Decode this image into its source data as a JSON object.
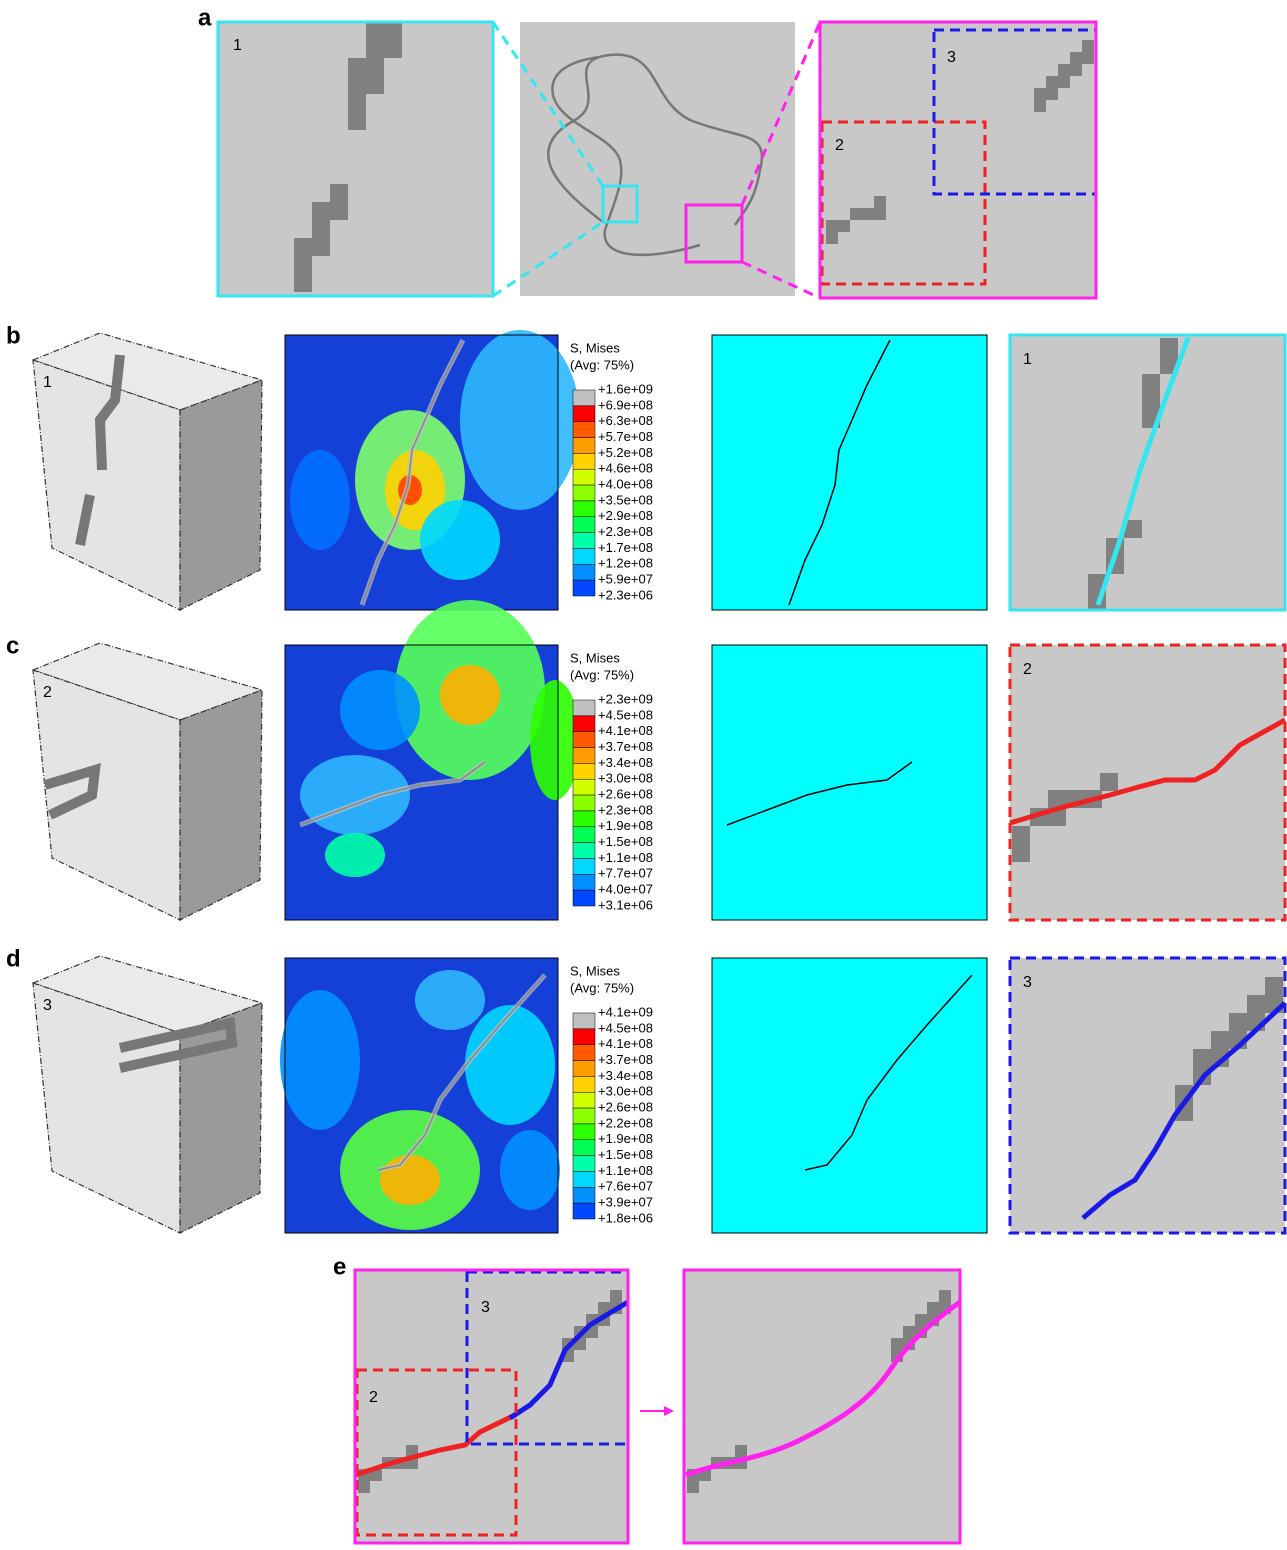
{
  "panel_a": {
    "label": "a",
    "zoom_left_label": "1",
    "zoom_right_labels": [
      "3",
      "2"
    ]
  },
  "rows": [
    {
      "label": "b",
      "block_label": "1",
      "zoom_label": "1",
      "legend": {
        "title": "S, Mises",
        "subtitle": "(Avg: 75%)",
        "ticks": [
          "+1.6e+09",
          "+6.9e+08",
          "+6.3e+08",
          "+5.7e+08",
          "+5.2e+08",
          "+4.6e+08",
          "+4.0e+08",
          "+3.5e+08",
          "+2.9e+08",
          "+2.3e+08",
          "+1.7e+08",
          "+1.2e+08",
          "+5.9e+07",
          "+2.3e+06"
        ]
      }
    },
    {
      "label": "c",
      "block_label": "2",
      "zoom_label": "2",
      "legend": {
        "title": "S, Mises",
        "subtitle": "(Avg: 75%)",
        "ticks": [
          "+2.3e+09",
          "+4.5e+08",
          "+4.1e+08",
          "+3.7e+08",
          "+3.4e+08",
          "+3.0e+08",
          "+2.6e+08",
          "+2.3e+08",
          "+1.9e+08",
          "+1.5e+08",
          "+1.1e+08",
          "+7.7e+07",
          "+4.0e+07",
          "+3.1e+06"
        ]
      }
    },
    {
      "label": "d",
      "block_label": "3",
      "zoom_label": "3",
      "legend": {
        "title": "S, Mises",
        "subtitle": "(Avg: 75%)",
        "ticks": [
          "+4.1e+09",
          "+4.5e+08",
          "+4.1e+08",
          "+3.7e+08",
          "+3.4e+08",
          "+3.0e+08",
          "+2.6e+08",
          "+2.2e+08",
          "+1.9e+08",
          "+1.5e+08",
          "+1.1e+08",
          "+7.6e+07",
          "+3.9e+07",
          "+1.8e+06"
        ]
      }
    }
  ],
  "panel_e": {
    "label": "e",
    "labels": [
      "3",
      "2"
    ]
  }
}
